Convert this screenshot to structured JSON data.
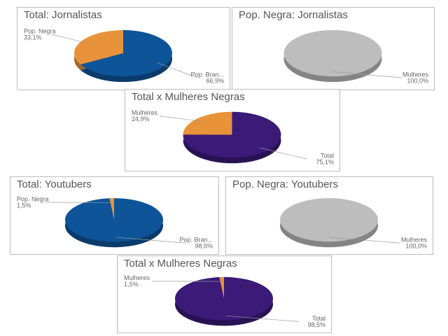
{
  "chart_data": [
    {
      "type": "pie",
      "title": "Total: Jornalistas",
      "categories": [
        "Pop. Negra",
        "Pop. Bran..."
      ],
      "values": [
        33.1,
        66.9
      ],
      "value_labels": [
        "33,1%",
        "66,9%"
      ],
      "colors": [
        "#e8923a",
        "#0d5499"
      ]
    },
    {
      "type": "pie",
      "title": "Pop. Negra: Jornalistas",
      "categories": [
        "Mulheres"
      ],
      "values": [
        100.0
      ],
      "value_labels": [
        "100,0%"
      ],
      "colors": [
        "#bdbdbd"
      ]
    },
    {
      "type": "pie",
      "title": "Total x Mulheres Negras",
      "categories": [
        "Mulheres",
        "Total"
      ],
      "values": [
        24.9,
        75.1
      ],
      "value_labels": [
        "24,9%",
        "75,1%"
      ],
      "colors": [
        "#e8923a",
        "#3b1a78"
      ]
    },
    {
      "type": "pie",
      "title": "Total: Youtubers",
      "categories": [
        "Pop. Negra",
        "Pop. Bran..."
      ],
      "values": [
        1.5,
        98.5
      ],
      "value_labels": [
        "1,5%",
        "98,5%"
      ],
      "colors": [
        "#e8923a",
        "#0d5499"
      ]
    },
    {
      "type": "pie",
      "title": "Pop. Negra: Youtubers",
      "categories": [
        "Mulheres"
      ],
      "values": [
        100.0
      ],
      "value_labels": [
        "100,0%"
      ],
      "colors": [
        "#bdbdbd"
      ]
    },
    {
      "type": "pie",
      "title": "Total x Mulheres Negras",
      "categories": [
        "Mulheres",
        "Total"
      ],
      "values": [
        1.5,
        98.5
      ],
      "value_labels": [
        "1,5%",
        "98,5%"
      ],
      "colors": [
        "#e8923a",
        "#3b1a78"
      ]
    }
  ]
}
